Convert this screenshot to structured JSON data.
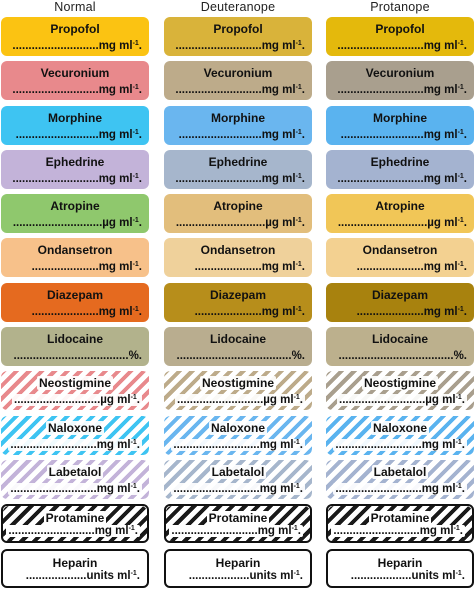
{
  "columns": [
    {
      "heading": "Normal",
      "labels": [
        {
          "drug": "Propofol",
          "dose": "...........................mg ml",
          "sup": "-1",
          "tail": ".",
          "fill": "#fbc312",
          "stripe": ""
        },
        {
          "drug": "Vecuronium",
          "dose": "...........................mg ml",
          "sup": "-1",
          "tail": ".",
          "fill": "#e8898c",
          "stripe": ""
        },
        {
          "drug": "Morphine",
          "dose": "..........................mg ml",
          "sup": "-1",
          "tail": ".",
          "fill": "#3ec4f2",
          "stripe": ""
        },
        {
          "drug": "Ephedrine",
          "dose": "...........................mg ml",
          "sup": "-1",
          "tail": ".",
          "fill": "#c3b3d9",
          "stripe": ""
        },
        {
          "drug": "Atropine",
          "dose": "............................µg ml",
          "sup": "-1",
          "tail": ".",
          "fill": "#8fc86d",
          "stripe": ""
        },
        {
          "drug": "Ondansetron",
          "dose": ".....................mg ml",
          "sup": "-1",
          "tail": ".",
          "fill": "#f7c18a",
          "stripe": ""
        },
        {
          "drug": "Diazepam",
          "dose": ".....................mg ml",
          "sup": "-1",
          "tail": ".",
          "fill": "#e56a1f",
          "stripe": ""
        },
        {
          "drug": "Lidocaine",
          "dose": "....................................%.",
          "sup": "",
          "tail": "",
          "fill": "#b2b28c",
          "stripe": ""
        },
        {
          "drug": "Neostigmine",
          "dose": "...........................µg ml",
          "sup": "-1",
          "tail": ".",
          "fill": "#ffffff",
          "stripe": "#e8898c"
        },
        {
          "drug": "Naloxone",
          "dose": "...........................mg ml",
          "sup": "-1",
          "tail": ".",
          "fill": "#ffffff",
          "stripe": "#3ec4f2"
        },
        {
          "drug": "Labetalol",
          "dose": "...........................mg ml",
          "sup": "-1",
          "tail": ".",
          "fill": "#ffffff",
          "stripe": "#c3b3d9"
        },
        {
          "drug": "Protamine",
          "dose": "...........................mg ml",
          "sup": "-1",
          "tail": ".",
          "fill": "#ffffff",
          "stripe": "#1a1a1a"
        },
        {
          "drug": "Heparin",
          "dose": "...................units ml",
          "sup": "-1",
          "tail": ".",
          "fill": "#ffffff",
          "stripe": "none"
        }
      ]
    },
    {
      "heading": "Deuteranope",
      "labels": [
        {
          "drug": "Propofol",
          "dose": "...........................mg ml",
          "sup": "-1",
          "tail": ".",
          "fill": "#d9b33a",
          "stripe": ""
        },
        {
          "drug": "Vecuronium",
          "dose": "...........................mg ml",
          "sup": "-1",
          "tail": ".",
          "fill": "#bdab8a",
          "stripe": ""
        },
        {
          "drug": "Morphine",
          "dose": "..........................mg ml",
          "sup": "-1",
          "tail": ".",
          "fill": "#6ab6ef",
          "stripe": ""
        },
        {
          "drug": "Ephedrine",
          "dose": "...........................mg ml",
          "sup": "-1",
          "tail": ".",
          "fill": "#a6b6cc",
          "stripe": ""
        },
        {
          "drug": "Atropine",
          "dose": "............................µg ml",
          "sup": "-1",
          "tail": ".",
          "fill": "#e2be7c",
          "stripe": ""
        },
        {
          "drug": "Ondansetron",
          "dose": ".....................mg ml",
          "sup": "-1",
          "tail": ".",
          "fill": "#efd19b",
          "stripe": ""
        },
        {
          "drug": "Diazepam",
          "dose": ".....................mg ml",
          "sup": "-1",
          "tail": ".",
          "fill": "#b78e1b",
          "stripe": ""
        },
        {
          "drug": "Lidocaine",
          "dose": "....................................%.",
          "sup": "",
          "tail": "",
          "fill": "#b9ad8f",
          "stripe": ""
        },
        {
          "drug": "Neostigmine",
          "dose": "...........................µg ml",
          "sup": "-1",
          "tail": ".",
          "fill": "#ffffff",
          "stripe": "#bdab8a"
        },
        {
          "drug": "Naloxone",
          "dose": "...........................mg ml",
          "sup": "-1",
          "tail": ".",
          "fill": "#ffffff",
          "stripe": "#6ab6ef"
        },
        {
          "drug": "Labetalol",
          "dose": "...........................mg ml",
          "sup": "-1",
          "tail": ".",
          "fill": "#ffffff",
          "stripe": "#a6b6cc"
        },
        {
          "drug": "Protamine",
          "dose": "...........................mg ml",
          "sup": "-1",
          "tail": ".",
          "fill": "#ffffff",
          "stripe": "#1a1a1a"
        },
        {
          "drug": "Heparin",
          "dose": "...................units ml",
          "sup": "-1",
          "tail": ".",
          "fill": "#ffffff",
          "stripe": "none"
        }
      ]
    },
    {
      "heading": "Protanope",
      "labels": [
        {
          "drug": "Propofol",
          "dose": "...........................mg ml",
          "sup": "-1",
          "tail": ".",
          "fill": "#e4b90c",
          "stripe": ""
        },
        {
          "drug": "Vecuronium",
          "dose": "...........................mg ml",
          "sup": "-1",
          "tail": ".",
          "fill": "#a99f8e",
          "stripe": ""
        },
        {
          "drug": "Morphine",
          "dose": "..........................mg ml",
          "sup": "-1",
          "tail": ".",
          "fill": "#5ab3ef",
          "stripe": ""
        },
        {
          "drug": "Ephedrine",
          "dose": "...........................mg ml",
          "sup": "-1",
          "tail": ".",
          "fill": "#a4b3d0",
          "stripe": ""
        },
        {
          "drug": "Atropine",
          "dose": "............................µg ml",
          "sup": "-1",
          "tail": ".",
          "fill": "#f1c657",
          "stripe": ""
        },
        {
          "drug": "Ondansetron",
          "dose": ".....................mg ml",
          "sup": "-1",
          "tail": ".",
          "fill": "#f3d191",
          "stripe": ""
        },
        {
          "drug": "Diazepam",
          "dose": ".....................mg ml",
          "sup": "-1",
          "tail": ".",
          "fill": "#a8820e",
          "stripe": ""
        },
        {
          "drug": "Lidocaine",
          "dose": "....................................%.",
          "sup": "",
          "tail": "",
          "fill": "#bcb08d",
          "stripe": ""
        },
        {
          "drug": "Neostigmine",
          "dose": "...........................µg ml",
          "sup": "-1",
          "tail": ".",
          "fill": "#ffffff",
          "stripe": "#a99f8e"
        },
        {
          "drug": "Naloxone",
          "dose": "...........................mg ml",
          "sup": "-1",
          "tail": ".",
          "fill": "#ffffff",
          "stripe": "#5ab3ef"
        },
        {
          "drug": "Labetalol",
          "dose": "...........................mg ml",
          "sup": "-1",
          "tail": ".",
          "fill": "#ffffff",
          "stripe": "#a4b3d0"
        },
        {
          "drug": "Protamine",
          "dose": "...........................mg ml",
          "sup": "-1",
          "tail": ".",
          "fill": "#ffffff",
          "stripe": "#1a1a1a"
        },
        {
          "drug": "Heparin",
          "dose": "...................units ml",
          "sup": "-1",
          "tail": ".",
          "fill": "#ffffff",
          "stripe": "none"
        }
      ]
    }
  ]
}
